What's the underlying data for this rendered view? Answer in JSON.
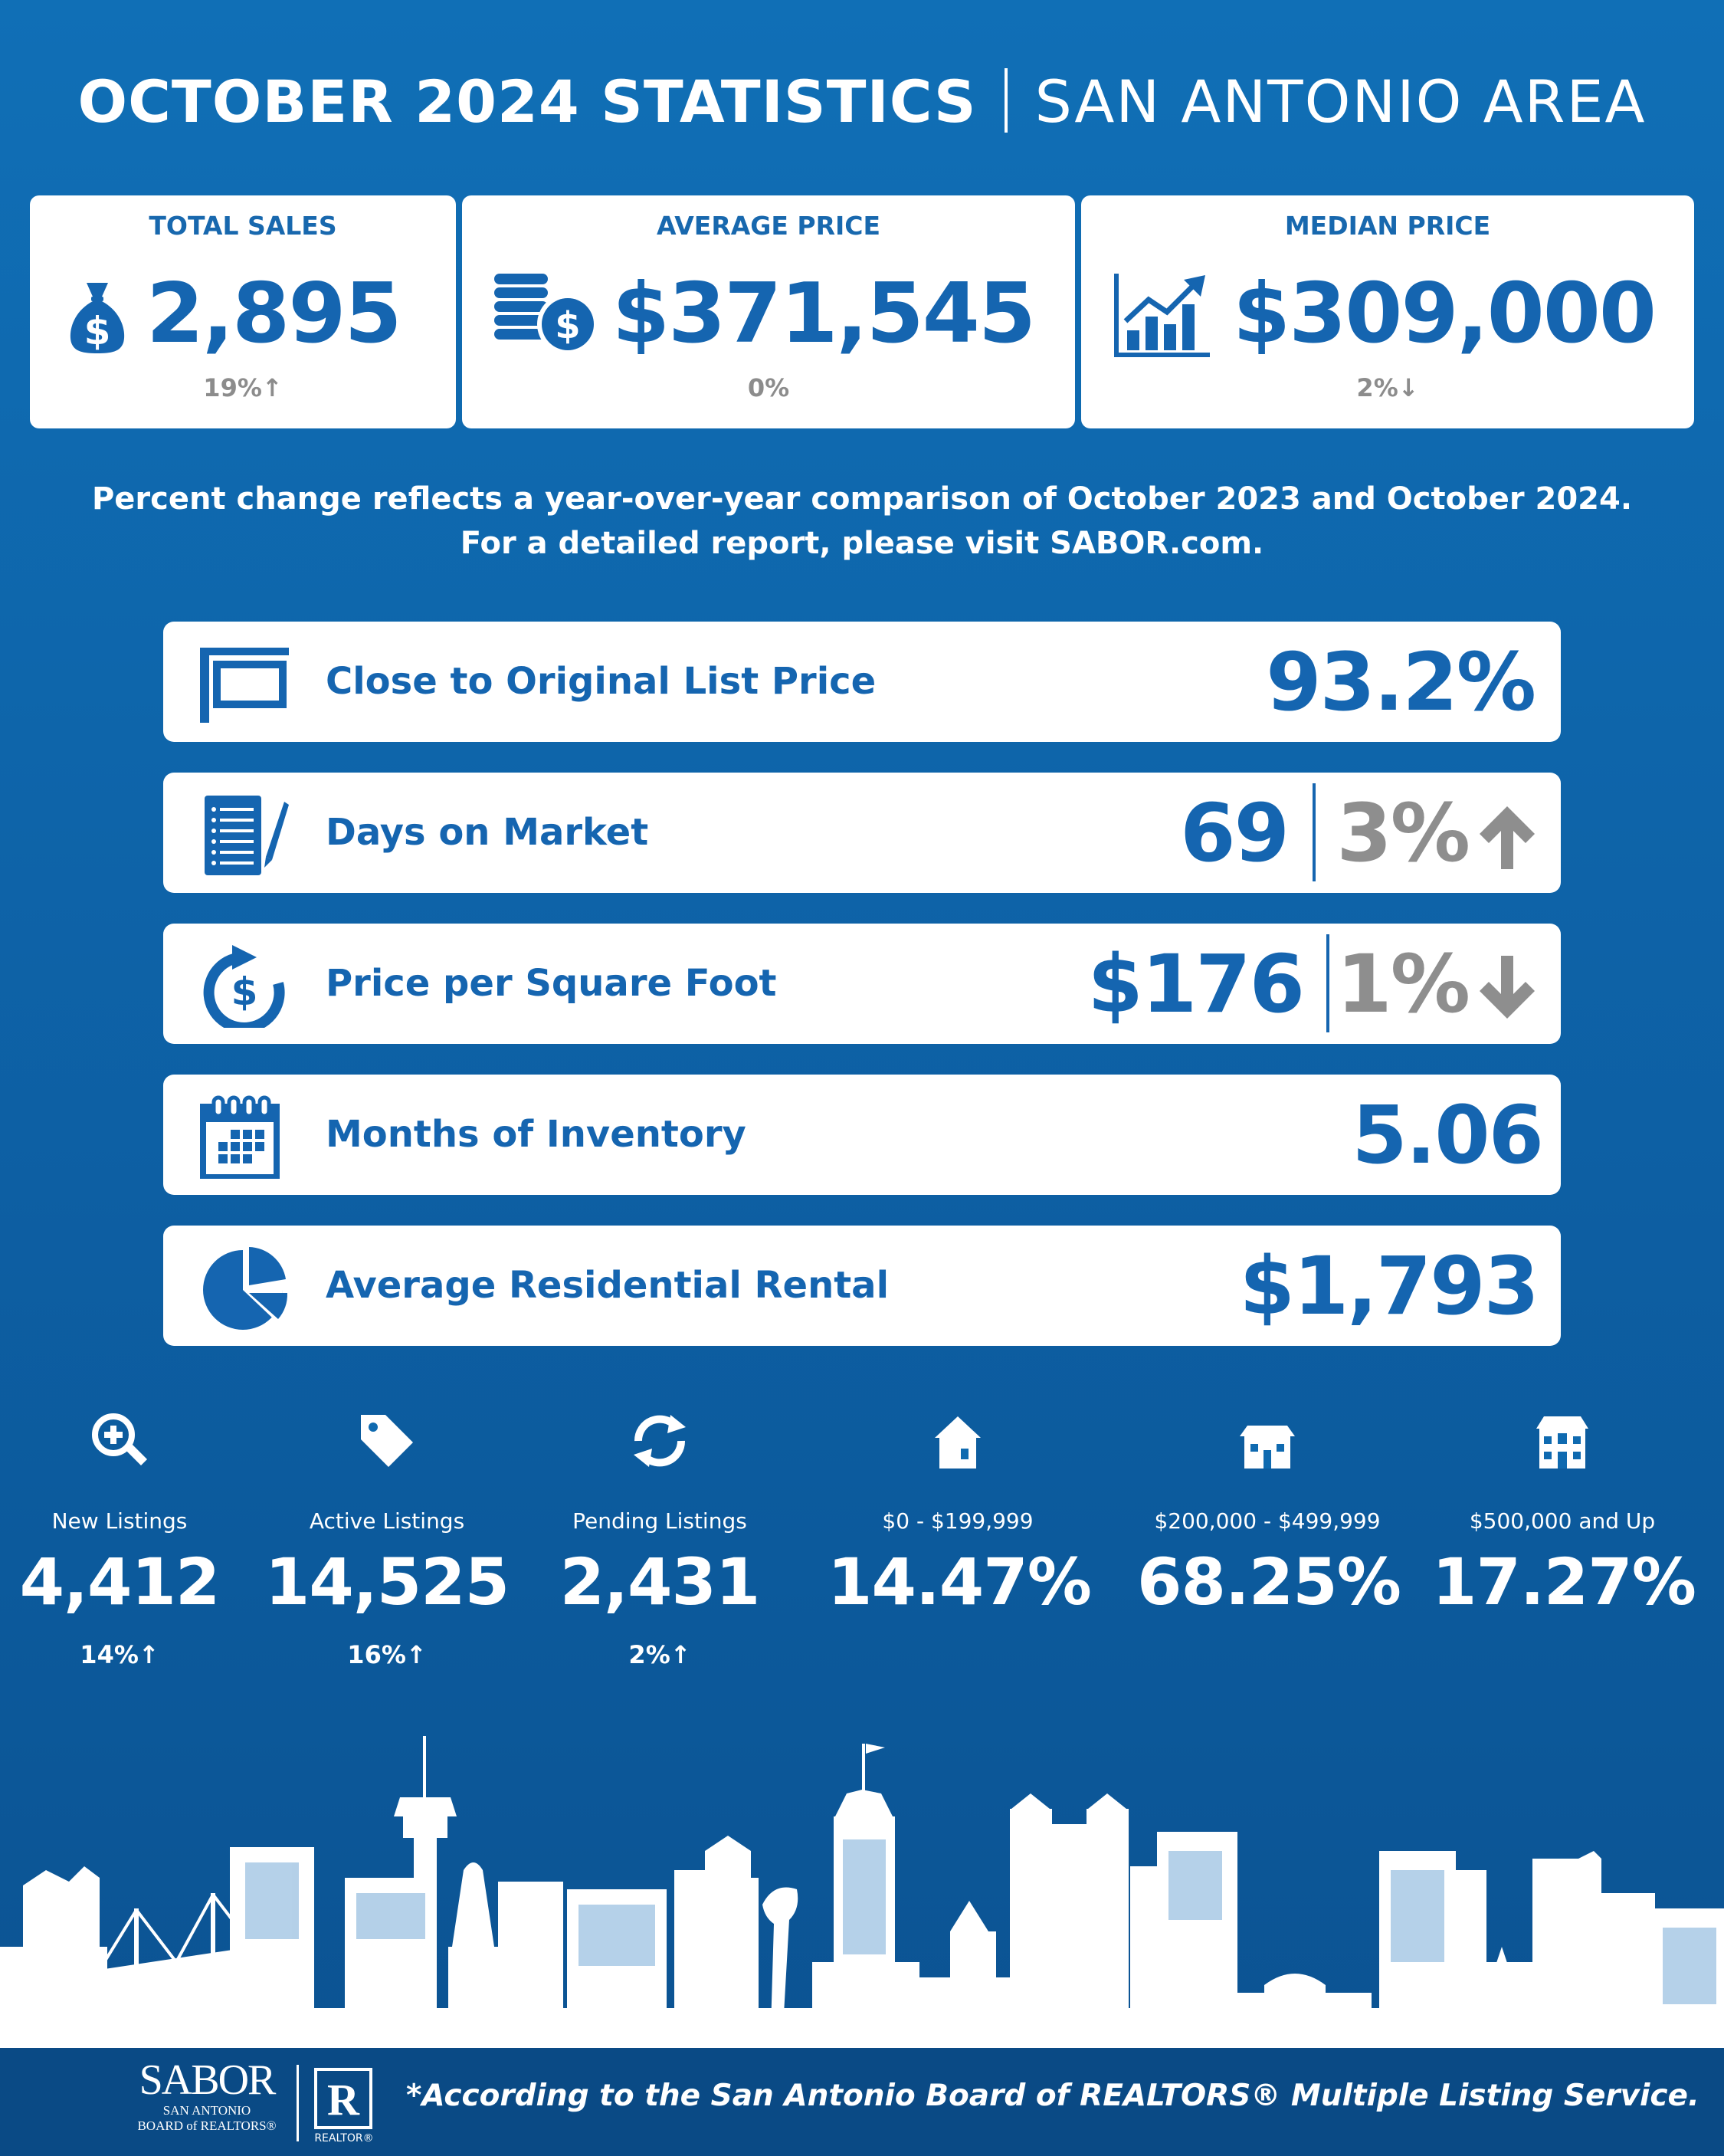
{
  "title": {
    "bold": "OCTOBER 2024 STATISTICS",
    "light": "SAN ANTONIO AREA"
  },
  "cards": [
    {
      "label": "TOTAL SALES",
      "value": "2,895",
      "change": "19%",
      "icon": "money-bag-icon",
      "direction": "up"
    },
    {
      "label": "AVERAGE PRICE",
      "value": "$371,545",
      "change": "0%",
      "icon": "coins-icon",
      "direction": "none"
    },
    {
      "label": "MEDIAN PRICE",
      "value": "$309,000",
      "change": "2%",
      "icon": "growth-chart-icon",
      "direction": "down"
    }
  ],
  "note": {
    "line1": "Percent change reflects a year-over-year comparison of October 2023 and October 2024.",
    "line2": "For a detailed report, please visit SABOR.com."
  },
  "rows": [
    {
      "label": "Close to Original List Price",
      "value": "93.2%",
      "icon": "sign-icon"
    },
    {
      "label": "Days on Market",
      "value": "69",
      "change": "3%",
      "direction": "up",
      "icon": "checklist-icon"
    },
    {
      "label": "Price per Square Foot",
      "value": "$176",
      "change": "1%",
      "direction": "down",
      "icon": "dollar-cycle-icon"
    },
    {
      "label": "Months of Inventory",
      "value": "5.06",
      "icon": "calendar-icon"
    },
    {
      "label": "Average Residential Rental",
      "value": "$1,793",
      "icon": "pie-chart-icon"
    }
  ],
  "stats": [
    {
      "label": "New Listings",
      "value": "4,412",
      "change": "14%",
      "icon": "magnify-plus-icon",
      "direction": "up"
    },
    {
      "label": "Active Listings",
      "value": "14,525",
      "change": "16%",
      "icon": "price-tag-icon",
      "direction": "up"
    },
    {
      "label": "Pending Listings",
      "value": "2,431",
      "change": "2%",
      "icon": "refresh-arrows-icon",
      "direction": "up"
    },
    {
      "label": "$0 - $199,999",
      "value": "14.47%",
      "icon": "small-house-icon"
    },
    {
      "label": "$200,000 - $499,999",
      "value": "68.25%",
      "icon": "medium-house-icon"
    },
    {
      "label": "$500,000 and Up",
      "value": "17.27%",
      "icon": "large-house-icon"
    }
  ],
  "footer": {
    "logo_main": "SABOR",
    "logo_line1": "SAN ANTONIO",
    "logo_line2": "BOARD of REALTORS®",
    "realtor_mark": "R",
    "realtor_caption": "REALTOR®",
    "note": "*According to the San Antonio Board of REALTORS® Multiple Listing Service."
  },
  "colors": {
    "background": "#0f6ab0",
    "accent": "#1565b0",
    "muted": "#8e8e8e",
    "footer": "#0a4a85"
  }
}
